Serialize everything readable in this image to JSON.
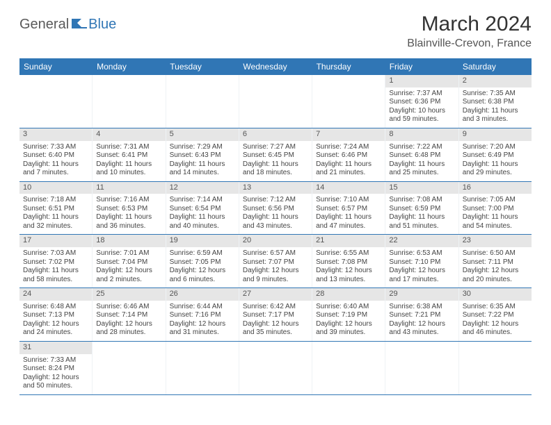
{
  "brand": {
    "general": "General",
    "blue": "Blue"
  },
  "title": "March 2024",
  "location": "Blainville-Crevon, France",
  "colors": {
    "header_bg": "#3076b5",
    "daynum_bg": "#e6e6e6",
    "week_divider": "#3076b5",
    "text": "#444444"
  },
  "weekdays": [
    "Sunday",
    "Monday",
    "Tuesday",
    "Wednesday",
    "Thursday",
    "Friday",
    "Saturday"
  ],
  "weeks": [
    [
      {
        "n": "",
        "empty": true
      },
      {
        "n": "",
        "empty": true
      },
      {
        "n": "",
        "empty": true
      },
      {
        "n": "",
        "empty": true
      },
      {
        "n": "",
        "empty": true
      },
      {
        "n": "1",
        "sr": "Sunrise: 7:37 AM",
        "ss": "Sunset: 6:36 PM",
        "d1": "Daylight: 10 hours",
        "d2": "and 59 minutes."
      },
      {
        "n": "2",
        "sr": "Sunrise: 7:35 AM",
        "ss": "Sunset: 6:38 PM",
        "d1": "Daylight: 11 hours",
        "d2": "and 3 minutes."
      }
    ],
    [
      {
        "n": "3",
        "sr": "Sunrise: 7:33 AM",
        "ss": "Sunset: 6:40 PM",
        "d1": "Daylight: 11 hours",
        "d2": "and 7 minutes."
      },
      {
        "n": "4",
        "sr": "Sunrise: 7:31 AM",
        "ss": "Sunset: 6:41 PM",
        "d1": "Daylight: 11 hours",
        "d2": "and 10 minutes."
      },
      {
        "n": "5",
        "sr": "Sunrise: 7:29 AM",
        "ss": "Sunset: 6:43 PM",
        "d1": "Daylight: 11 hours",
        "d2": "and 14 minutes."
      },
      {
        "n": "6",
        "sr": "Sunrise: 7:27 AM",
        "ss": "Sunset: 6:45 PM",
        "d1": "Daylight: 11 hours",
        "d2": "and 18 minutes."
      },
      {
        "n": "7",
        "sr": "Sunrise: 7:24 AM",
        "ss": "Sunset: 6:46 PM",
        "d1": "Daylight: 11 hours",
        "d2": "and 21 minutes."
      },
      {
        "n": "8",
        "sr": "Sunrise: 7:22 AM",
        "ss": "Sunset: 6:48 PM",
        "d1": "Daylight: 11 hours",
        "d2": "and 25 minutes."
      },
      {
        "n": "9",
        "sr": "Sunrise: 7:20 AM",
        "ss": "Sunset: 6:49 PM",
        "d1": "Daylight: 11 hours",
        "d2": "and 29 minutes."
      }
    ],
    [
      {
        "n": "10",
        "sr": "Sunrise: 7:18 AM",
        "ss": "Sunset: 6:51 PM",
        "d1": "Daylight: 11 hours",
        "d2": "and 32 minutes."
      },
      {
        "n": "11",
        "sr": "Sunrise: 7:16 AM",
        "ss": "Sunset: 6:53 PM",
        "d1": "Daylight: 11 hours",
        "d2": "and 36 minutes."
      },
      {
        "n": "12",
        "sr": "Sunrise: 7:14 AM",
        "ss": "Sunset: 6:54 PM",
        "d1": "Daylight: 11 hours",
        "d2": "and 40 minutes."
      },
      {
        "n": "13",
        "sr": "Sunrise: 7:12 AM",
        "ss": "Sunset: 6:56 PM",
        "d1": "Daylight: 11 hours",
        "d2": "and 43 minutes."
      },
      {
        "n": "14",
        "sr": "Sunrise: 7:10 AM",
        "ss": "Sunset: 6:57 PM",
        "d1": "Daylight: 11 hours",
        "d2": "and 47 minutes."
      },
      {
        "n": "15",
        "sr": "Sunrise: 7:08 AM",
        "ss": "Sunset: 6:59 PM",
        "d1": "Daylight: 11 hours",
        "d2": "and 51 minutes."
      },
      {
        "n": "16",
        "sr": "Sunrise: 7:05 AM",
        "ss": "Sunset: 7:00 PM",
        "d1": "Daylight: 11 hours",
        "d2": "and 54 minutes."
      }
    ],
    [
      {
        "n": "17",
        "sr": "Sunrise: 7:03 AM",
        "ss": "Sunset: 7:02 PM",
        "d1": "Daylight: 11 hours",
        "d2": "and 58 minutes."
      },
      {
        "n": "18",
        "sr": "Sunrise: 7:01 AM",
        "ss": "Sunset: 7:04 PM",
        "d1": "Daylight: 12 hours",
        "d2": "and 2 minutes."
      },
      {
        "n": "19",
        "sr": "Sunrise: 6:59 AM",
        "ss": "Sunset: 7:05 PM",
        "d1": "Daylight: 12 hours",
        "d2": "and 6 minutes."
      },
      {
        "n": "20",
        "sr": "Sunrise: 6:57 AM",
        "ss": "Sunset: 7:07 PM",
        "d1": "Daylight: 12 hours",
        "d2": "and 9 minutes."
      },
      {
        "n": "21",
        "sr": "Sunrise: 6:55 AM",
        "ss": "Sunset: 7:08 PM",
        "d1": "Daylight: 12 hours",
        "d2": "and 13 minutes."
      },
      {
        "n": "22",
        "sr": "Sunrise: 6:53 AM",
        "ss": "Sunset: 7:10 PM",
        "d1": "Daylight: 12 hours",
        "d2": "and 17 minutes."
      },
      {
        "n": "23",
        "sr": "Sunrise: 6:50 AM",
        "ss": "Sunset: 7:11 PM",
        "d1": "Daylight: 12 hours",
        "d2": "and 20 minutes."
      }
    ],
    [
      {
        "n": "24",
        "sr": "Sunrise: 6:48 AM",
        "ss": "Sunset: 7:13 PM",
        "d1": "Daylight: 12 hours",
        "d2": "and 24 minutes."
      },
      {
        "n": "25",
        "sr": "Sunrise: 6:46 AM",
        "ss": "Sunset: 7:14 PM",
        "d1": "Daylight: 12 hours",
        "d2": "and 28 minutes."
      },
      {
        "n": "26",
        "sr": "Sunrise: 6:44 AM",
        "ss": "Sunset: 7:16 PM",
        "d1": "Daylight: 12 hours",
        "d2": "and 31 minutes."
      },
      {
        "n": "27",
        "sr": "Sunrise: 6:42 AM",
        "ss": "Sunset: 7:17 PM",
        "d1": "Daylight: 12 hours",
        "d2": "and 35 minutes."
      },
      {
        "n": "28",
        "sr": "Sunrise: 6:40 AM",
        "ss": "Sunset: 7:19 PM",
        "d1": "Daylight: 12 hours",
        "d2": "and 39 minutes."
      },
      {
        "n": "29",
        "sr": "Sunrise: 6:38 AM",
        "ss": "Sunset: 7:21 PM",
        "d1": "Daylight: 12 hours",
        "d2": "and 43 minutes."
      },
      {
        "n": "30",
        "sr": "Sunrise: 6:35 AM",
        "ss": "Sunset: 7:22 PM",
        "d1": "Daylight: 12 hours",
        "d2": "and 46 minutes."
      }
    ],
    [
      {
        "n": "31",
        "sr": "Sunrise: 7:33 AM",
        "ss": "Sunset: 8:24 PM",
        "d1": "Daylight: 12 hours",
        "d2": "and 50 minutes."
      },
      {
        "n": "",
        "empty": true
      },
      {
        "n": "",
        "empty": true
      },
      {
        "n": "",
        "empty": true
      },
      {
        "n": "",
        "empty": true
      },
      {
        "n": "",
        "empty": true
      },
      {
        "n": "",
        "empty": true
      }
    ]
  ]
}
